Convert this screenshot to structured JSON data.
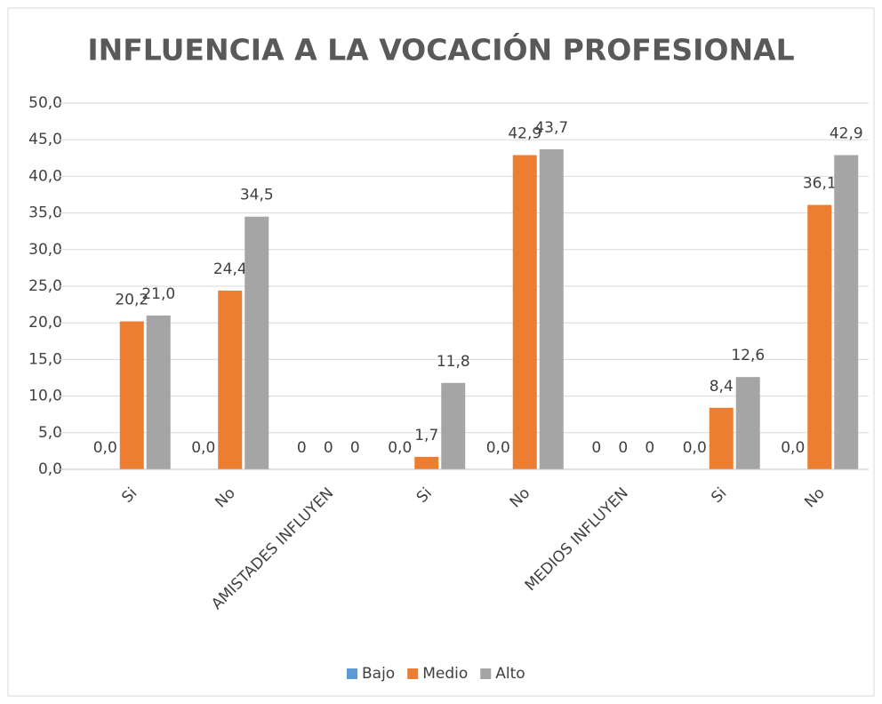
{
  "chart_data": {
    "type": "bar",
    "title": "INFLUENCIA A LA VOCACIÓN PROFESIONAL",
    "categories": [
      "Si",
      "No",
      "AMISTADES INFLUYEN",
      "Si",
      "No",
      "MEDIOS INFLUYEN",
      "Si",
      "No"
    ],
    "series": [
      {
        "name": "Bajo",
        "color": "#5b9bd5",
        "values": [
          0,
          0,
          0,
          0,
          0,
          0,
          0,
          0
        ],
        "value_labels": [
          "0,0",
          "0,0",
          "0",
          "0,0",
          "0,0",
          "0",
          "0,0",
          "0,0"
        ]
      },
      {
        "name": "Medio",
        "color": "#ed7d31",
        "values": [
          20.2,
          24.4,
          0,
          1.7,
          42.9,
          0,
          8.4,
          36.1
        ],
        "value_labels": [
          "20,2",
          "24,4",
          "0",
          "1,7",
          "42,9",
          "0",
          "8,4",
          "36,1"
        ]
      },
      {
        "name": "Alto",
        "color": "#a5a5a5",
        "values": [
          21.0,
          34.5,
          0,
          11.8,
          43.7,
          0,
          12.6,
          42.9
        ],
        "value_labels": [
          "21,0",
          "34,5",
          "0",
          "11,8",
          "43,7",
          "0",
          "12,6",
          "42,9"
        ]
      }
    ],
    "ylim": [
      0,
      50
    ],
    "yticks": [
      {
        "value": 0,
        "label": "0,0"
      },
      {
        "value": 5,
        "label": "5,0"
      },
      {
        "value": 10,
        "label": "10,0"
      },
      {
        "value": 15,
        "label": "15,0"
      },
      {
        "value": 20,
        "label": "20,0"
      },
      {
        "value": 25,
        "label": "25,0"
      },
      {
        "value": 30,
        "label": "30,0"
      },
      {
        "value": 35,
        "label": "35,0"
      },
      {
        "value": 40,
        "label": "40,0"
      },
      {
        "value": 45,
        "label": "45,0"
      },
      {
        "value": 50,
        "label": "50,0"
      }
    ],
    "grid": true,
    "legend": "bottom"
  }
}
